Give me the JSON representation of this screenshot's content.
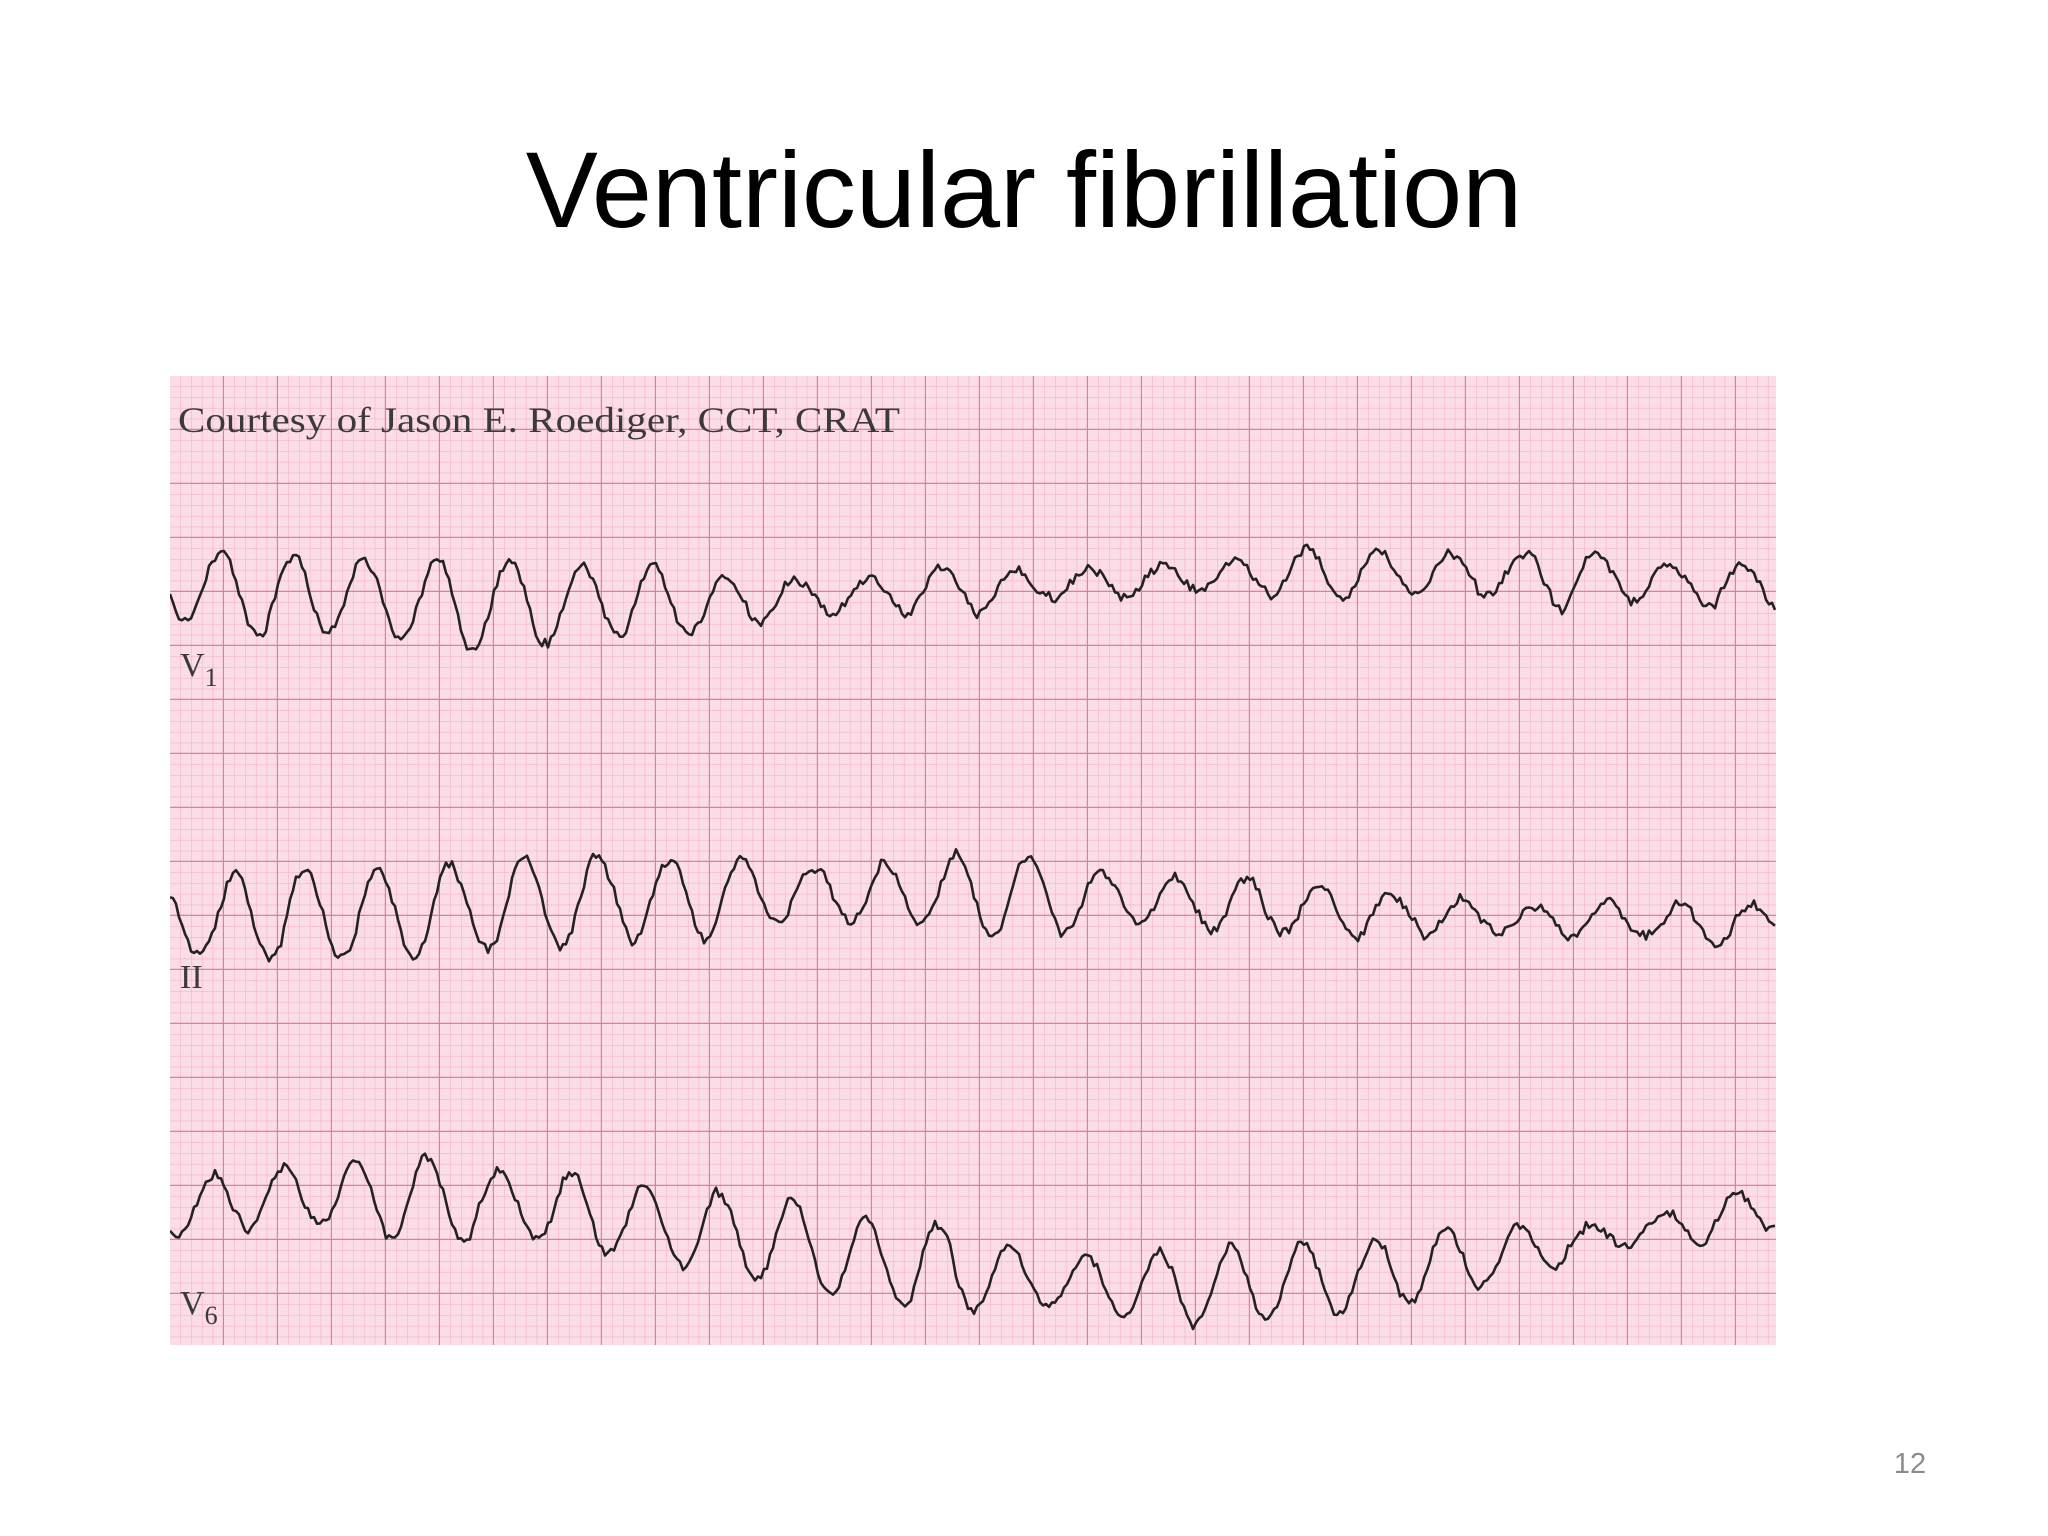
{
  "slide": {
    "title": "Ventricular fibrillation",
    "page_number": "12"
  },
  "ecg": {
    "credit": "Courtesy of Jason E. Roediger, CCT, CRAT",
    "leads": [
      {
        "name": "V",
        "sub": "1"
      },
      {
        "name": "II"
      },
      {
        "name": "V",
        "sub": "6"
      }
    ]
  }
}
